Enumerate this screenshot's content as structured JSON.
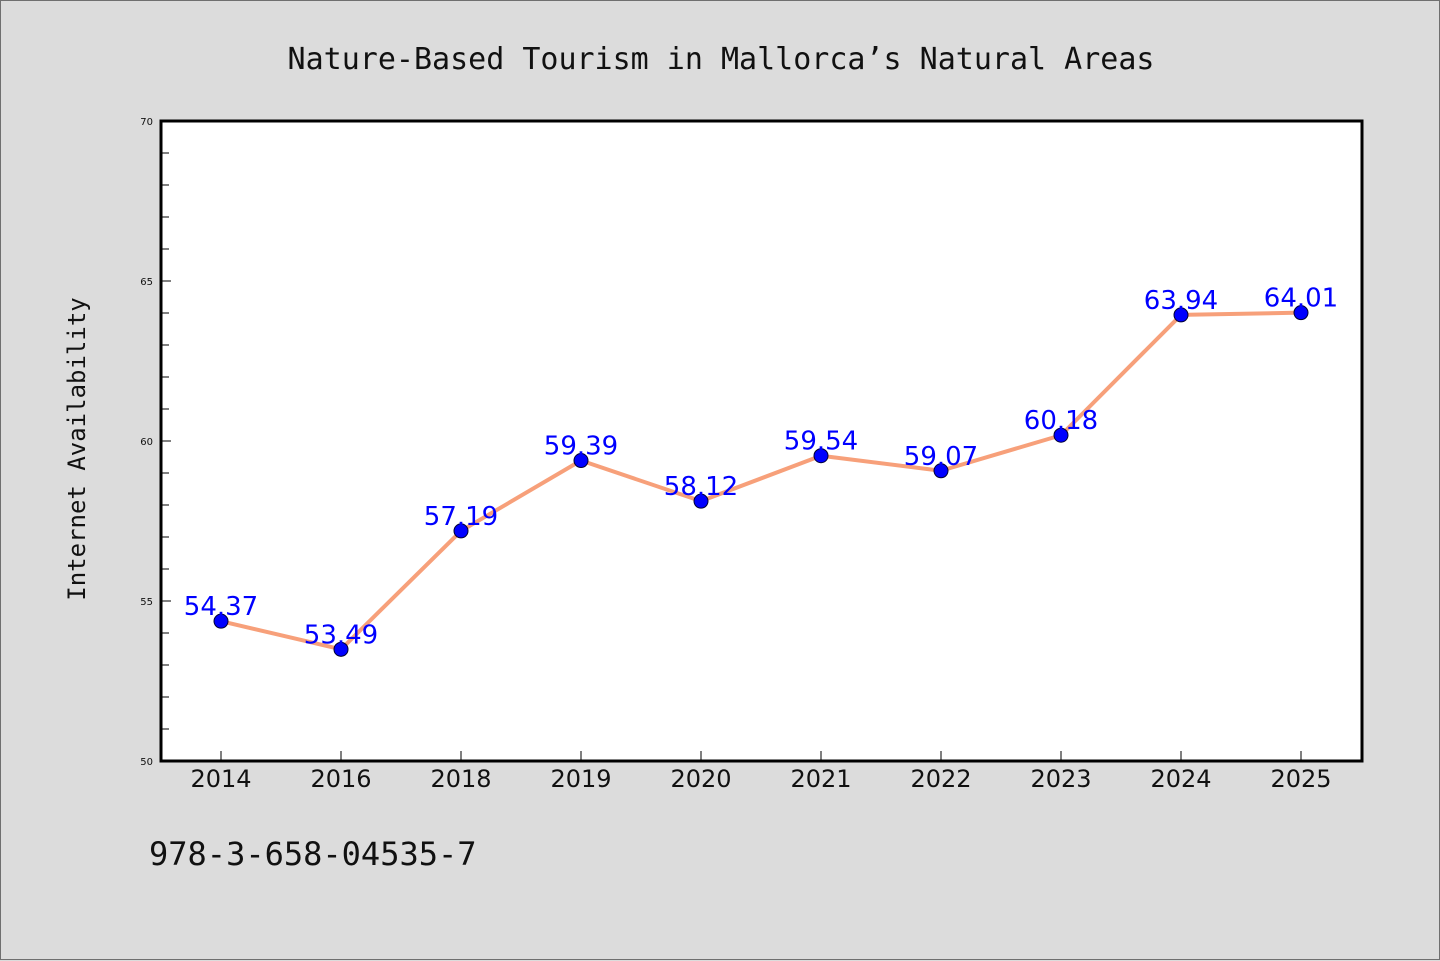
{
  "chart_data": {
    "type": "line",
    "title": "Nature-Based Tourism in Mallorca’s Natural Areas",
    "xlabel": "",
    "ylabel": "Internet Availability",
    "categories": [
      "2014",
      "2016",
      "2018",
      "2019",
      "2020",
      "2021",
      "2022",
      "2023",
      "2024",
      "2025"
    ],
    "series": [
      {
        "values": [
          54.37,
          53.49,
          57.19,
          59.39,
          58.12,
          59.54,
          59.07,
          60.18,
          63.94,
          64.01
        ],
        "labels": [
          "54.37",
          "53.49",
          "57.19",
          "59.39",
          "58.12",
          "59.54",
          "59.07",
          "60.18",
          "63.94",
          "64.01"
        ]
      }
    ],
    "ylim": [
      50,
      70
    ],
    "yticks": [
      "50",
      "55",
      "60",
      "65",
      "70"
    ],
    "grid": false,
    "legend": "none",
    "colors": {
      "line": "#f7a07a",
      "marker": "#0000ff",
      "label": "#0000ff"
    }
  },
  "footer": {
    "isbn": "978-3-658-04535-7"
  }
}
